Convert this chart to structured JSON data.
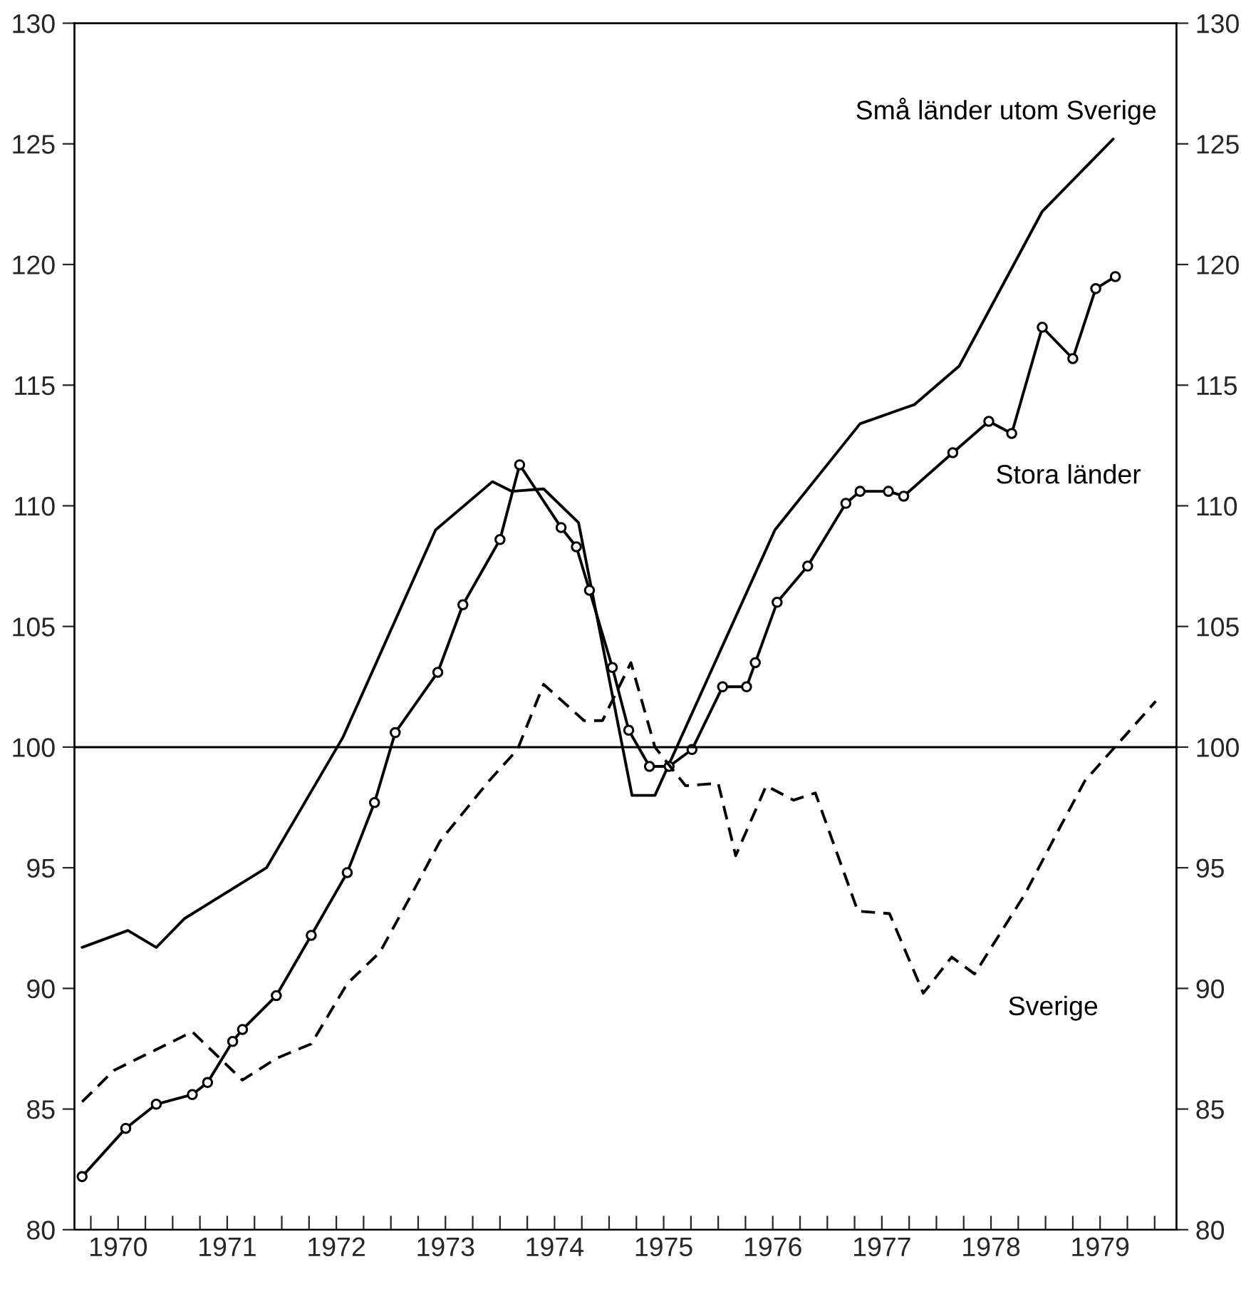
{
  "chart_data": {
    "type": "line",
    "xlim": [
      1970.1,
      1980.2
    ],
    "ylim": [
      80,
      130
    ],
    "y2lim": [
      80,
      130
    ],
    "yticks": [
      80,
      85,
      90,
      95,
      100,
      105,
      110,
      115,
      120,
      125,
      130
    ],
    "y2ticks": [
      80,
      85,
      90,
      95,
      100,
      105,
      110,
      115,
      120,
      125,
      130
    ],
    "xticks": [
      {
        "value": 1970.25,
        "label": null
      },
      {
        "value": 1970.5,
        "label": "1970"
      },
      {
        "value": 1970.75,
        "label": null
      },
      {
        "value": 1971,
        "label": null
      },
      {
        "value": 1971.25,
        "label": null
      },
      {
        "value": 1971.5,
        "label": "1971"
      },
      {
        "value": 1971.75,
        "label": null
      },
      {
        "value": 1972,
        "label": null
      },
      {
        "value": 1972.25,
        "label": null
      },
      {
        "value": 1972.5,
        "label": "1972"
      },
      {
        "value": 1972.75,
        "label": null
      },
      {
        "value": 1973,
        "label": null
      },
      {
        "value": 1973.25,
        "label": null
      },
      {
        "value": 1973.5,
        "label": "1973"
      },
      {
        "value": 1973.75,
        "label": null
      },
      {
        "value": 1974,
        "label": null
      },
      {
        "value": 1974.25,
        "label": null
      },
      {
        "value": 1974.5,
        "label": "1974"
      },
      {
        "value": 1974.75,
        "label": null
      },
      {
        "value": 1975,
        "label": null
      },
      {
        "value": 1975.25,
        "label": null
      },
      {
        "value": 1975.5,
        "label": "1975"
      },
      {
        "value": 1975.75,
        "label": null
      },
      {
        "value": 1976,
        "label": null
      },
      {
        "value": 1976.25,
        "label": null
      },
      {
        "value": 1976.5,
        "label": "1976"
      },
      {
        "value": 1976.75,
        "label": null
      },
      {
        "value": 1977,
        "label": null
      },
      {
        "value": 1977.25,
        "label": null
      },
      {
        "value": 1977.5,
        "label": "1977"
      },
      {
        "value": 1977.75,
        "label": null
      },
      {
        "value": 1978,
        "label": null
      },
      {
        "value": 1978.25,
        "label": null
      },
      {
        "value": 1978.5,
        "label": "1978"
      },
      {
        "value": 1978.75,
        "label": null
      },
      {
        "value": 1979,
        "label": null
      },
      {
        "value": 1979.25,
        "label": null
      },
      {
        "value": 1979.5,
        "label": "1979"
      },
      {
        "value": 1979.75,
        "label": null
      },
      {
        "value": 1980,
        "label": null
      }
    ],
    "grid": false,
    "ref_lines": [
      {
        "axis": "y",
        "value": 100,
        "label": null,
        "color": "#000000"
      }
    ],
    "series": [
      {
        "name": "Små länder utom Sverige",
        "color": "#000000",
        "line_style": "solid",
        "marker": "none",
        "x": [
          1970.17,
          1970.59,
          1970.85,
          1971.11,
          1971.86,
          1972.56,
          1973.41,
          1973.93,
          1974.11,
          1974.4,
          1974.72,
          1975.21,
          1975.42,
          1976.52,
          1977.3,
          1977.8,
          1978.21,
          1978.97,
          1979.62
        ],
        "values": [
          91.7,
          92.4,
          91.7,
          92.9,
          95.0,
          100.4,
          109.0,
          111.0,
          110.6,
          110.7,
          109.3,
          98.0,
          98.0,
          109.0,
          113.4,
          114.2,
          115.8,
          122.2,
          125.2
        ]
      },
      {
        "name": "Stora länder",
        "color": "#000000",
        "line_style": "solid",
        "marker": "circle",
        "x": [
          1970.17,
          1970.57,
          1970.85,
          1971.18,
          1971.32,
          1971.55,
          1971.64,
          1971.95,
          1972.27,
          1972.6,
          1972.85,
          1973.04,
          1973.43,
          1973.66,
          1974.0,
          1974.18,
          1974.56,
          1974.7,
          1974.82,
          1975.03,
          1975.18,
          1975.37,
          1975.55,
          1975.76,
          1976.04,
          1976.26,
          1976.34,
          1976.54,
          1976.82,
          1977.17,
          1977.3,
          1977.56,
          1977.7,
          1978.15,
          1978.48,
          1978.69,
          1978.97,
          1979.25,
          1979.46,
          1979.64
        ],
        "values": [
          82.2,
          84.2,
          85.2,
          85.6,
          86.1,
          87.8,
          88.3,
          89.7,
          92.2,
          94.8,
          97.7,
          100.6,
          103.1,
          105.9,
          108.6,
          111.7,
          109.1,
          108.3,
          106.5,
          103.3,
          100.7,
          99.2,
          99.2,
          99.9,
          102.5,
          102.5,
          103.5,
          106.0,
          107.5,
          110.1,
          110.6,
          110.6,
          110.4,
          112.2,
          113.5,
          113.0,
          117.4,
          116.1,
          119.0,
          119.5
        ]
      },
      {
        "name": "Sverige",
        "color": "#000000",
        "line_style": "dashed",
        "marker": "none",
        "x": [
          1970.17,
          1970.46,
          1971.18,
          1971.64,
          1971.95,
          1972.27,
          1972.6,
          1972.9,
          1973.19,
          1973.45,
          1973.9,
          1974.16,
          1974.4,
          1974.77,
          1974.94,
          1975.2,
          1975.42,
          1975.7,
          1976.0,
          1976.16,
          1976.44,
          1976.69,
          1976.89,
          1977.28,
          1977.57,
          1977.88,
          1978.14,
          1978.35,
          1978.81,
          1979.1,
          1979.36,
          1980.01
        ],
        "values": [
          85.3,
          86.6,
          88.2,
          86.2,
          87.1,
          87.7,
          90.2,
          91.5,
          93.9,
          96.1,
          98.6,
          99.9,
          102.6,
          101.1,
          101.1,
          103.5,
          100.0,
          98.4,
          98.5,
          95.5,
          98.4,
          97.8,
          98.1,
          93.2,
          93.1,
          89.8,
          91.3,
          90.6,
          93.9,
          96.4,
          98.6,
          101.9
        ]
      }
    ]
  }
}
